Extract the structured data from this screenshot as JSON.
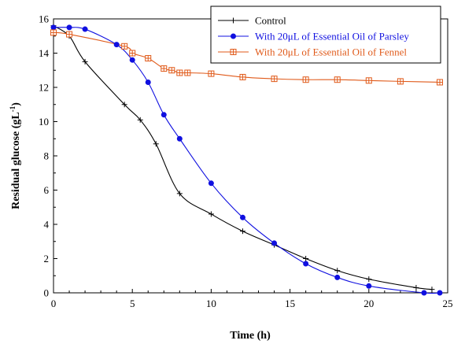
{
  "chart_data": {
    "type": "line",
    "xlabel": "Time (h)",
    "ylabel": "Residual glucose (gL",
    "ylabel_sup": "-1",
    "ylabel_close": ")",
    "xlim": [
      0,
      25
    ],
    "ylim": [
      0,
      16
    ],
    "x_ticks": [
      0,
      5,
      10,
      15,
      20,
      25
    ],
    "y_ticks": [
      0,
      2,
      4,
      6,
      8,
      10,
      12,
      14,
      16
    ],
    "grid": false,
    "legend_position": "top-right",
    "series": [
      {
        "name": "Control",
        "color": "#000000",
        "marker": "plus",
        "x": [
          0,
          1,
          2,
          4.5,
          5.5,
          6.5,
          8,
          10,
          12,
          14,
          16,
          18,
          20,
          23,
          24
        ],
        "y": [
          15.6,
          15.0,
          13.5,
          11.0,
          10.1,
          8.7,
          5.8,
          4.6,
          3.6,
          2.8,
          2.0,
          1.3,
          0.8,
          0.3,
          0.2
        ]
      },
      {
        "name": "With 20μL of Essential Oil of Parsley",
        "color": "#1010e0",
        "marker": "circle",
        "x": [
          0,
          1,
          2,
          4,
          5,
          6,
          7,
          8,
          10,
          12,
          14,
          16,
          18,
          20,
          23.5,
          24.5
        ],
        "y": [
          15.5,
          15.5,
          15.4,
          14.5,
          13.6,
          12.3,
          10.4,
          9.0,
          6.4,
          4.4,
          2.9,
          1.7,
          0.9,
          0.4,
          0.0,
          0.0
        ]
      },
      {
        "name": "With 20μL of Essential Oil of Fennel",
        "color": "#e05a1a",
        "marker": "square",
        "x": [
          0,
          1,
          4.5,
          5,
          6,
          7,
          7.5,
          8,
          8.5,
          10,
          12,
          14,
          16,
          18,
          20,
          22,
          24.5
        ],
        "y": [
          15.2,
          15.1,
          14.4,
          14.0,
          13.7,
          13.1,
          13.0,
          12.85,
          12.85,
          12.8,
          12.6,
          12.5,
          12.45,
          12.45,
          12.4,
          12.35,
          12.3
        ]
      }
    ]
  }
}
